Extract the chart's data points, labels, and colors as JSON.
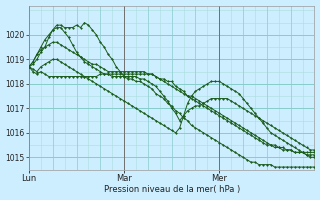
{
  "bg_color": "#cceeff",
  "grid_color_minor": "#aadddd",
  "grid_color_major": "#88cccc",
  "line_color": "#1a5c1a",
  "vline_color": "#707070",
  "ylim": [
    1014.5,
    1021.2
  ],
  "yticks": [
    1015,
    1016,
    1017,
    1018,
    1019,
    1020
  ],
  "xlabel": "Pression niveau de la mer( hPa )",
  "day_labels": [
    "Lun",
    "Mar",
    "Mer"
  ],
  "day_positions": [
    0,
    24,
    48
  ],
  "xlim": [
    0,
    72
  ],
  "n_points": 73,
  "series": [
    [
      1018.7,
      1018.8,
      1019.0,
      1019.3,
      1019.5,
      1019.9,
      1020.2,
      1020.4,
      1020.4,
      1020.3,
      1020.3,
      1020.3,
      1020.4,
      1020.3,
      1020.5,
      1020.4,
      1020.2,
      1020.0,
      1019.7,
      1019.5,
      1019.2,
      1019.0,
      1018.7,
      1018.5,
      1018.3,
      1018.2,
      1018.2,
      1018.1,
      1018.1,
      1018.0,
      1017.9,
      1017.8,
      1017.6,
      1017.5,
      1017.4,
      1017.2,
      1017.1,
      1016.9,
      1016.8,
      1016.6,
      1016.5,
      1016.3,
      1016.2,
      1016.1,
      1016.0,
      1015.9,
      1015.8,
      1015.7,
      1015.6,
      1015.5,
      1015.4,
      1015.3,
      1015.2,
      1015.1,
      1015.0,
      1014.9,
      1014.8,
      1014.8,
      1014.7,
      1014.7,
      1014.7,
      1014.7,
      1014.6,
      1014.6,
      1014.6,
      1014.6,
      1014.6,
      1014.6,
      1014.6,
      1014.6,
      1014.6,
      1014.6,
      1014.6
    ],
    [
      1018.7,
      1018.5,
      1018.4,
      1018.5,
      1018.4,
      1018.3,
      1018.3,
      1018.3,
      1018.3,
      1018.3,
      1018.3,
      1018.3,
      1018.3,
      1018.3,
      1018.3,
      1018.3,
      1018.3,
      1018.3,
      1018.4,
      1018.4,
      1018.4,
      1018.4,
      1018.4,
      1018.4,
      1018.4,
      1018.4,
      1018.4,
      1018.4,
      1018.4,
      1018.4,
      1018.4,
      1018.4,
      1018.3,
      1018.2,
      1018.2,
      1018.1,
      1018.1,
      1017.9,
      1017.8,
      1017.7,
      1017.5,
      1017.4,
      1017.3,
      1017.2,
      1017.1,
      1017.0,
      1016.9,
      1016.8,
      1016.7,
      1016.6,
      1016.5,
      1016.4,
      1016.3,
      1016.2,
      1016.1,
      1016.0,
      1015.9,
      1015.8,
      1015.7,
      1015.6,
      1015.5,
      1015.5,
      1015.4,
      1015.4,
      1015.3,
      1015.3,
      1015.3,
      1015.2,
      1015.2,
      1015.2,
      1015.2,
      1015.2,
      1015.2
    ],
    [
      1018.7,
      1018.9,
      1019.2,
      1019.4,
      1019.5,
      1019.6,
      1019.7,
      1019.7,
      1019.6,
      1019.5,
      1019.4,
      1019.3,
      1019.2,
      1019.1,
      1019.0,
      1018.9,
      1018.8,
      1018.8,
      1018.7,
      1018.6,
      1018.5,
      1018.5,
      1018.5,
      1018.5,
      1018.5,
      1018.5,
      1018.5,
      1018.5,
      1018.5,
      1018.5,
      1018.4,
      1018.4,
      1018.3,
      1018.2,
      1018.1,
      1018.0,
      1017.9,
      1017.8,
      1017.7,
      1017.6,
      1017.5,
      1017.5,
      1017.4,
      1017.3,
      1017.2,
      1017.1,
      1017.0,
      1016.9,
      1016.8,
      1016.7,
      1016.6,
      1016.5,
      1016.4,
      1016.3,
      1016.2,
      1016.1,
      1016.0,
      1015.9,
      1015.8,
      1015.7,
      1015.6,
      1015.5,
      1015.5,
      1015.4,
      1015.4,
      1015.3,
      1015.3,
      1015.2,
      1015.2,
      1015.2,
      1015.1,
      1015.1,
      1015.1
    ],
    [
      1018.7,
      1018.9,
      1019.2,
      1019.5,
      1019.8,
      1020.0,
      1020.2,
      1020.3,
      1020.3,
      1020.1,
      1019.9,
      1019.6,
      1019.3,
      1019.1,
      1018.9,
      1018.8,
      1018.7,
      1018.6,
      1018.5,
      1018.4,
      1018.4,
      1018.3,
      1018.3,
      1018.3,
      1018.3,
      1018.3,
      1018.3,
      1018.3,
      1018.2,
      1018.2,
      1018.1,
      1018.0,
      1017.9,
      1017.7,
      1017.5,
      1017.3,
      1017.0,
      1016.8,
      1016.5,
      1016.7,
      1016.9,
      1017.0,
      1017.1,
      1017.1,
      1017.2,
      1017.3,
      1017.4,
      1017.4,
      1017.4,
      1017.4,
      1017.4,
      1017.3,
      1017.2,
      1017.1,
      1017.0,
      1016.9,
      1016.8,
      1016.7,
      1016.6,
      1016.5,
      1016.4,
      1016.3,
      1016.2,
      1016.1,
      1016.0,
      1015.9,
      1015.8,
      1015.7,
      1015.6,
      1015.5,
      1015.4,
      1015.3,
      1015.3
    ],
    [
      1018.7,
      1018.6,
      1018.5,
      1018.7,
      1018.8,
      1018.9,
      1019.0,
      1019.0,
      1018.9,
      1018.8,
      1018.7,
      1018.6,
      1018.5,
      1018.4,
      1018.3,
      1018.2,
      1018.1,
      1018.0,
      1017.9,
      1017.8,
      1017.7,
      1017.6,
      1017.5,
      1017.4,
      1017.3,
      1017.2,
      1017.1,
      1017.0,
      1016.9,
      1016.8,
      1016.7,
      1016.6,
      1016.5,
      1016.4,
      1016.3,
      1016.2,
      1016.1,
      1016.0,
      1016.2,
      1016.7,
      1017.2,
      1017.5,
      1017.7,
      1017.8,
      1017.9,
      1018.0,
      1018.1,
      1018.1,
      1018.1,
      1018.0,
      1017.9,
      1017.8,
      1017.7,
      1017.6,
      1017.4,
      1017.2,
      1017.0,
      1016.8,
      1016.6,
      1016.4,
      1016.2,
      1016.0,
      1015.9,
      1015.8,
      1015.7,
      1015.6,
      1015.5,
      1015.4,
      1015.3,
      1015.2,
      1015.1,
      1015.0,
      1015.0
    ]
  ]
}
